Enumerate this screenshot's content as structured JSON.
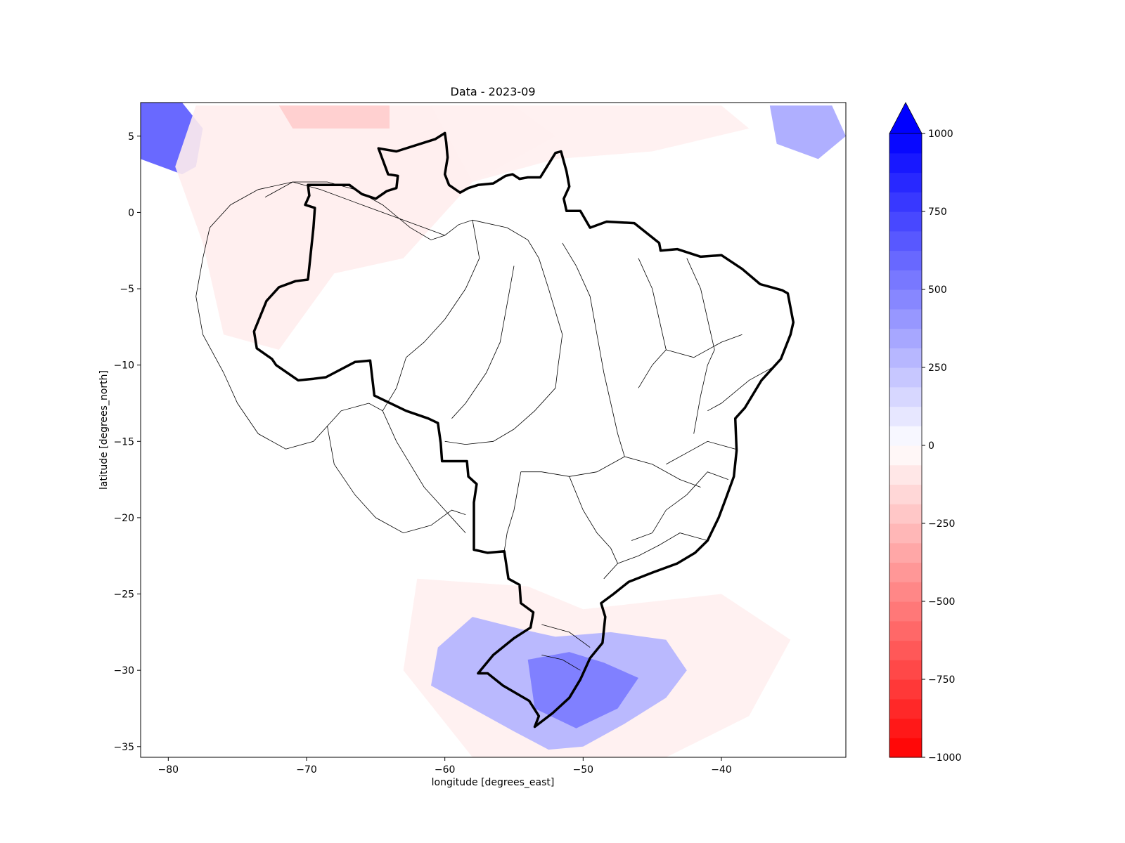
{
  "chart_data": {
    "type": "heatmap",
    "title": "Data - 2023-09",
    "xlabel": "longitude [degrees_east]",
    "ylabel": "latitude [degrees_north]",
    "xlim": [
      -82,
      -31
    ],
    "ylim": [
      -35.7,
      7.2
    ],
    "xticks": [
      {
        "value": -80,
        "label": "−80"
      },
      {
        "value": -70,
        "label": "−70"
      },
      {
        "value": -60,
        "label": "−60"
      },
      {
        "value": -50,
        "label": "−50"
      },
      {
        "value": -40,
        "label": "−40"
      }
    ],
    "yticks": [
      {
        "value": 5,
        "label": "5"
      },
      {
        "value": 0,
        "label": "0"
      },
      {
        "value": -5,
        "label": "−5"
      },
      {
        "value": -10,
        "label": "−10"
      },
      {
        "value": -15,
        "label": "−15"
      },
      {
        "value": -20,
        "label": "−20"
      },
      {
        "value": -25,
        "label": "−25"
      },
      {
        "value": -30,
        "label": "−30"
      },
      {
        "value": -35,
        "label": "−35"
      }
    ],
    "colorbar": {
      "min": -1000,
      "max": 1000,
      "levels": 32,
      "extend": "max",
      "low_color": "#ff0000",
      "mid_color": "#ffffff",
      "high_color": "#0000ff",
      "ticks": [
        {
          "value": 1000,
          "label": "1000"
        },
        {
          "value": 750,
          "label": "750"
        },
        {
          "value": 500,
          "label": "500"
        },
        {
          "value": 250,
          "label": "250"
        },
        {
          "value": 0,
          "label": "0"
        },
        {
          "value": -250,
          "label": "−250"
        },
        {
          "value": -500,
          "label": "−500"
        },
        {
          "value": -750,
          "label": "−750"
        },
        {
          "value": -1000,
          "label": "−1000"
        }
      ]
    },
    "anomaly_regions": [
      {
        "name": "nw-colombia",
        "value": 650,
        "polygon": [
          [
            -82,
            7.2
          ],
          [
            -79,
            7.2
          ],
          [
            -77.5,
            5.5
          ],
          [
            -78,
            3
          ],
          [
            -79,
            2.5
          ],
          [
            -82,
            3.5
          ]
        ]
      },
      {
        "name": "se-far-ne",
        "value": 350,
        "polygon": [
          [
            -36.5,
            7
          ],
          [
            -32,
            7
          ],
          [
            -31,
            5
          ],
          [
            -33,
            3.5
          ],
          [
            -36,
            4.5
          ]
        ]
      },
      {
        "name": "northern-amazon",
        "value": -70,
        "polygon": [
          [
            -78,
            7
          ],
          [
            -55,
            7
          ],
          [
            -52,
            5
          ],
          [
            -58,
            2
          ],
          [
            -63,
            -3
          ],
          [
            -68,
            -4
          ],
          [
            -72,
            -9
          ],
          [
            -76,
            -8
          ],
          [
            -77.5,
            -2
          ],
          [
            -79.5,
            3
          ]
        ]
      },
      {
        "name": "northern-hotspot",
        "value": -200,
        "polygon": [
          [
            -72,
            7
          ],
          [
            -64,
            7
          ],
          [
            -64,
            5.5
          ],
          [
            -71,
            5.5
          ]
        ]
      },
      {
        "name": "guiana-coast",
        "value": -60,
        "polygon": [
          [
            -61,
            7
          ],
          [
            -40,
            7
          ],
          [
            -38,
            5.5
          ],
          [
            -45,
            4
          ],
          [
            -52,
            3.5
          ],
          [
            -58,
            2
          ]
        ]
      },
      {
        "name": "la-plata-south",
        "value": -60,
        "polygon": [
          [
            -62,
            -24
          ],
          [
            -54,
            -24.5
          ],
          [
            -50,
            -26
          ],
          [
            -40,
            -25
          ],
          [
            -35,
            -28
          ],
          [
            -38,
            -33
          ],
          [
            -44,
            -35.7
          ],
          [
            -58,
            -35.7
          ],
          [
            -63,
            -30
          ]
        ]
      },
      {
        "name": "southern-brazil-uruguay",
        "value": 300,
        "polygon": [
          [
            -58,
            -26.5
          ],
          [
            -54.5,
            -27.3
          ],
          [
            -52,
            -27.8
          ],
          [
            -48,
            -27.5
          ],
          [
            -44,
            -28
          ],
          [
            -42.5,
            -30
          ],
          [
            -44,
            -31.8
          ],
          [
            -47,
            -33.5
          ],
          [
            -50,
            -35
          ],
          [
            -52.5,
            -35.2
          ],
          [
            -55,
            -34
          ],
          [
            -58,
            -32.5
          ],
          [
            -61,
            -31
          ],
          [
            -60.5,
            -28.5
          ]
        ]
      },
      {
        "name": "rio-grande-core",
        "value": 520,
        "polygon": [
          [
            -54,
            -29.3
          ],
          [
            -51,
            -28.8
          ],
          [
            -48.5,
            -29.5
          ],
          [
            -46,
            -30.5
          ],
          [
            -47.5,
            -32.5
          ],
          [
            -50.5,
            -33.8
          ],
          [
            -53.5,
            -32.5
          ]
        ]
      }
    ],
    "brazil_outline": [
      [
        -60.0,
        5.2
      ],
      [
        -60.7,
        4.8
      ],
      [
        -63.5,
        4.0
      ],
      [
        -64.8,
        4.2
      ],
      [
        -64.1,
        2.5
      ],
      [
        -63.4,
        2.4
      ],
      [
        -63.5,
        1.6
      ],
      [
        -64.2,
        1.4
      ],
      [
        -65.0,
        0.9
      ],
      [
        -66.0,
        1.2
      ],
      [
        -66.9,
        1.8
      ],
      [
        -69.9,
        1.8
      ],
      [
        -69.8,
        1.1
      ],
      [
        -70.1,
        0.5
      ],
      [
        -69.4,
        0.3
      ],
      [
        -69.5,
        -1.0
      ],
      [
        -69.9,
        -4.4
      ],
      [
        -70.8,
        -4.5
      ],
      [
        -72.0,
        -4.9
      ],
      [
        -72.9,
        -5.8
      ],
      [
        -73.8,
        -7.8
      ],
      [
        -73.6,
        -8.9
      ],
      [
        -72.5,
        -9.6
      ],
      [
        -72.2,
        -10.0
      ],
      [
        -70.6,
        -11.0
      ],
      [
        -69.5,
        -10.9
      ],
      [
        -68.6,
        -10.8
      ],
      [
        -66.5,
        -9.8
      ],
      [
        -65.4,
        -9.7
      ],
      [
        -65.1,
        -12.0
      ],
      [
        -62.8,
        -13.0
      ],
      [
        -61.2,
        -13.5
      ],
      [
        -60.5,
        -13.8
      ],
      [
        -60.3,
        -15.1
      ],
      [
        -60.2,
        -16.3
      ],
      [
        -58.4,
        -16.3
      ],
      [
        -58.3,
        -17.3
      ],
      [
        -57.7,
        -17.8
      ],
      [
        -57.9,
        -19.0
      ],
      [
        -57.9,
        -20.4
      ],
      [
        -57.9,
        -22.1
      ],
      [
        -56.9,
        -22.3
      ],
      [
        -55.7,
        -22.2
      ],
      [
        -55.4,
        -24.0
      ],
      [
        -54.6,
        -24.4
      ],
      [
        -54.5,
        -25.6
      ],
      [
        -53.6,
        -26.2
      ],
      [
        -53.8,
        -27.2
      ],
      [
        -55.0,
        -27.9
      ],
      [
        -56.5,
        -29.0
      ],
      [
        -57.6,
        -30.2
      ],
      [
        -56.9,
        -30.2
      ],
      [
        -55.8,
        -31.0
      ],
      [
        -53.9,
        -32.0
      ],
      [
        -53.2,
        -33.0
      ],
      [
        -53.5,
        -33.7
      ],
      [
        -52.2,
        -32.8
      ],
      [
        -51.0,
        -31.8
      ],
      [
        -50.2,
        -30.6
      ],
      [
        -49.5,
        -29.2
      ],
      [
        -48.6,
        -28.2
      ],
      [
        -48.4,
        -26.5
      ],
      [
        -48.7,
        -25.6
      ],
      [
        -47.8,
        -25.0
      ],
      [
        -46.7,
        -24.2
      ],
      [
        -45.0,
        -23.6
      ],
      [
        -43.2,
        -23.0
      ],
      [
        -41.9,
        -22.3
      ],
      [
        -41.0,
        -21.5
      ],
      [
        -40.2,
        -20.0
      ],
      [
        -39.7,
        -18.8
      ],
      [
        -39.1,
        -17.3
      ],
      [
        -38.9,
        -15.6
      ],
      [
        -39.0,
        -13.5
      ],
      [
        -38.3,
        -12.8
      ],
      [
        -37.1,
        -11.0
      ],
      [
        -35.7,
        -9.6
      ],
      [
        -35.0,
        -8.0
      ],
      [
        -34.8,
        -7.2
      ],
      [
        -35.2,
        -5.3
      ],
      [
        -35.6,
        -5.1
      ],
      [
        -37.2,
        -4.7
      ],
      [
        -38.5,
        -3.7
      ],
      [
        -40.0,
        -2.8
      ],
      [
        -41.5,
        -2.9
      ],
      [
        -43.2,
        -2.4
      ],
      [
        -44.4,
        -2.5
      ],
      [
        -44.5,
        -2.0
      ],
      [
        -46.3,
        -0.7
      ],
      [
        -48.3,
        -0.6
      ],
      [
        -49.5,
        -1.0
      ],
      [
        -50.2,
        0.1
      ],
      [
        -51.2,
        0.1
      ],
      [
        -51.4,
        0.9
      ],
      [
        -51.0,
        1.7
      ],
      [
        -51.2,
        2.7
      ],
      [
        -51.6,
        4.0
      ],
      [
        -52.0,
        3.9
      ],
      [
        -53.1,
        2.3
      ],
      [
        -54.0,
        2.3
      ],
      [
        -54.6,
        2.2
      ],
      [
        -55.1,
        2.5
      ],
      [
        -55.6,
        2.4
      ],
      [
        -56.5,
        1.9
      ],
      [
        -57.6,
        1.8
      ],
      [
        -58.3,
        1.6
      ],
      [
        -58.9,
        1.3
      ],
      [
        -59.7,
        1.8
      ],
      [
        -60.0,
        2.5
      ],
      [
        -59.8,
        3.6
      ],
      [
        -59.9,
        4.6
      ],
      [
        -60.0,
        5.2
      ]
    ],
    "basin_boundaries": [
      [
        [
          -58.0,
          -0.5
        ],
        [
          -55.5,
          -1.0
        ],
        [
          -54.0,
          -1.8
        ],
        [
          -53.2,
          -3.0
        ],
        [
          -52.5,
          -5.0
        ],
        [
          -52.0,
          -6.5
        ],
        [
          -51.5,
          -8.0
        ],
        [
          -51.8,
          -10.0
        ],
        [
          -52.0,
          -11.5
        ],
        [
          -53.5,
          -13.0
        ],
        [
          -55.0,
          -14.2
        ],
        [
          -56.5,
          -15.0
        ],
        [
          -58.5,
          -15.2
        ],
        [
          -60.0,
          -15.0
        ]
      ],
      [
        [
          -73.0,
          1.0
        ],
        [
          -71.0,
          2.0
        ],
        [
          -68.5,
          2.0
        ],
        [
          -66.5,
          1.5
        ],
        [
          -64.5,
          0.5
        ],
        [
          -62.5,
          -1.0
        ],
        [
          -61.0,
          -1.8
        ],
        [
          -60.0,
          -1.5
        ],
        [
          -59.0,
          -0.8
        ],
        [
          -58.0,
          -0.5
        ]
      ],
      [
        [
          -58.0,
          -0.5
        ],
        [
          -57.5,
          -3.0
        ],
        [
          -58.5,
          -5.0
        ],
        [
          -60.0,
          -7.0
        ],
        [
          -61.5,
          -8.5
        ],
        [
          -62.8,
          -9.5
        ],
        [
          -63.5,
          -11.5
        ],
        [
          -64.5,
          -13.0
        ]
      ],
      [
        [
          -55.0,
          -3.5
        ],
        [
          -55.5,
          -6.0
        ],
        [
          -56.0,
          -8.5
        ],
        [
          -57.0,
          -10.5
        ],
        [
          -58.5,
          -12.5
        ],
        [
          -59.5,
          -13.5
        ]
      ],
      [
        [
          -51.5,
          -2.0
        ],
        [
          -50.5,
          -3.5
        ],
        [
          -49.5,
          -5.5
        ],
        [
          -49.0,
          -8.0
        ],
        [
          -48.5,
          -10.5
        ],
        [
          -48.0,
          -12.5
        ],
        [
          -47.5,
          -14.5
        ],
        [
          -47.0,
          -16.0
        ]
      ],
      [
        [
          -47.0,
          -16.0
        ],
        [
          -49.0,
          -17.0
        ],
        [
          -51.0,
          -17.3
        ],
        [
          -53.0,
          -17.0
        ],
        [
          -54.5,
          -17.0
        ]
      ],
      [
        [
          -47.0,
          -16.0
        ],
        [
          -45.0,
          -16.5
        ],
        [
          -43.0,
          -17.5
        ],
        [
          -41.5,
          -18.0
        ]
      ],
      [
        [
          -46.0,
          -3.0
        ],
        [
          -45.0,
          -5.0
        ],
        [
          -44.5,
          -7.0
        ],
        [
          -44.0,
          -9.0
        ],
        [
          -45.0,
          -10.0
        ],
        [
          -46.0,
          -11.5
        ]
      ],
      [
        [
          -42.5,
          -3.0
        ],
        [
          -41.5,
          -5.0
        ],
        [
          -41.0,
          -7.0
        ],
        [
          -40.5,
          -9.0
        ],
        [
          -41.0,
          -10.0
        ],
        [
          -41.5,
          -12.0
        ],
        [
          -42.0,
          -14.5
        ]
      ],
      [
        [
          -38.5,
          -8.0
        ],
        [
          -40.0,
          -8.5
        ],
        [
          -42.0,
          -9.5
        ],
        [
          -44.0,
          -9.0
        ]
      ],
      [
        [
          -36.0,
          -10.0
        ],
        [
          -38.0,
          -11.0
        ],
        [
          -40.0,
          -12.5
        ],
        [
          -41.0,
          -13.0
        ]
      ],
      [
        [
          -39.0,
          -15.5
        ],
        [
          -41.0,
          -15.0
        ],
        [
          -42.0,
          -15.5
        ],
        [
          -44.0,
          -16.5
        ]
      ],
      [
        [
          -39.5,
          -17.5
        ],
        [
          -41.0,
          -17.0
        ],
        [
          -42.5,
          -18.5
        ],
        [
          -44.0,
          -19.5
        ],
        [
          -45.0,
          -21.0
        ],
        [
          -46.5,
          -21.5
        ]
      ],
      [
        [
          -41.0,
          -21.5
        ],
        [
          -43.0,
          -21.0
        ],
        [
          -44.5,
          -21.8
        ],
        [
          -46.0,
          -22.5
        ],
        [
          -47.5,
          -23.0
        ],
        [
          -48.5,
          -24.0
        ]
      ],
      [
        [
          -54.5,
          -17.0
        ],
        [
          -55.0,
          -19.5
        ],
        [
          -55.5,
          -21.0
        ],
        [
          -55.7,
          -22.2
        ]
      ],
      [
        [
          -51.0,
          -17.3
        ],
        [
          -50.0,
          -19.5
        ],
        [
          -49.0,
          -21.0
        ],
        [
          -48.0,
          -22.0
        ],
        [
          -47.5,
          -23.0
        ]
      ],
      [
        [
          -53.0,
          -27.0
        ],
        [
          -51.0,
          -27.5
        ],
        [
          -49.5,
          -28.5
        ]
      ],
      [
        [
          -53.0,
          -29.0
        ],
        [
          -51.5,
          -29.3
        ],
        [
          -50.2,
          -30.0
        ]
      ]
    ],
    "amazon_outline": [
      [
        -60.0,
        -1.5
      ],
      [
        -63.0,
        -0.5
      ],
      [
        -66.0,
        0.5
      ],
      [
        -69.0,
        1.5
      ],
      [
        -71.0,
        2.0
      ],
      [
        -73.5,
        1.5
      ],
      [
        -75.5,
        0.5
      ],
      [
        -77.0,
        -1.0
      ],
      [
        -77.5,
        -3.0
      ],
      [
        -78.0,
        -5.5
      ],
      [
        -77.5,
        -8.0
      ],
      [
        -76.0,
        -10.5
      ],
      [
        -75.0,
        -12.5
      ],
      [
        -73.5,
        -14.5
      ],
      [
        -71.5,
        -15.5
      ],
      [
        -69.5,
        -15.0
      ],
      [
        -68.5,
        -14.0
      ],
      [
        -68.0,
        -16.5
      ],
      [
        -66.5,
        -18.5
      ],
      [
        -65.0,
        -20.0
      ],
      [
        -63.0,
        -21.0
      ],
      [
        -61.0,
        -20.5
      ],
      [
        -59.5,
        -19.5
      ],
      [
        -58.5,
        -19.8
      ]
    ],
    "parana_outline": [
      [
        -68.5,
        -14.0
      ],
      [
        -67.5,
        -13.0
      ],
      [
        -65.5,
        -12.5
      ],
      [
        -64.5,
        -13.0
      ],
      [
        -63.5,
        -15.0
      ],
      [
        -62.5,
        -16.5
      ],
      [
        -61.5,
        -18.0
      ],
      [
        -60.0,
        -19.5
      ],
      [
        -59.0,
        -20.5
      ],
      [
        -58.5,
        -21.0
      ]
    ]
  }
}
